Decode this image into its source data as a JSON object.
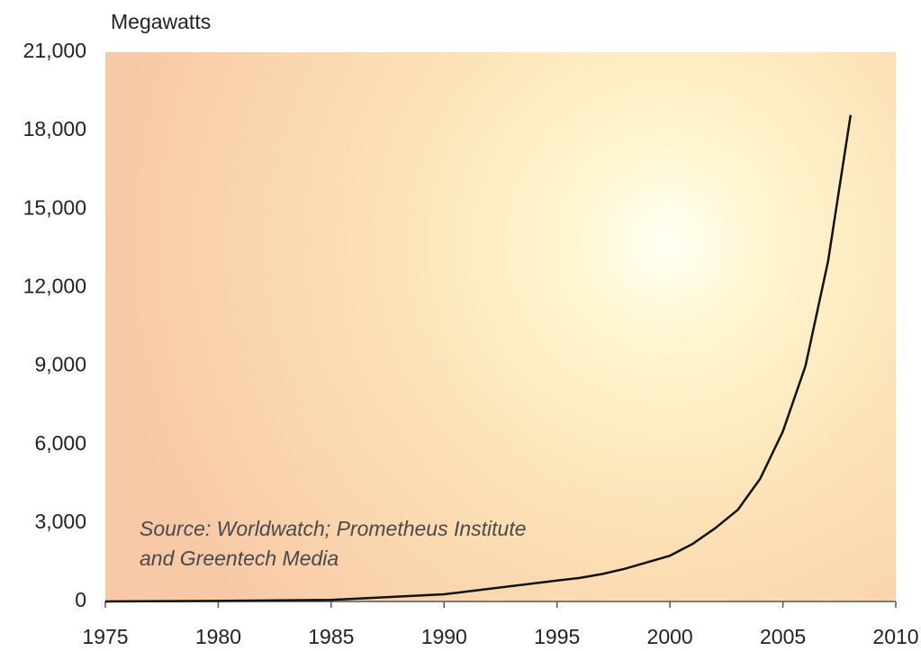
{
  "chart_data": {
    "type": "line",
    "y_axis_label": "Megawatts",
    "annotation": [
      "Source: Worldwatch; Prometheus Institute",
      "and Greentech Media"
    ],
    "x": [
      1975,
      1980,
      1985,
      1990,
      1995,
      1996,
      1997,
      1998,
      1999,
      2000,
      2001,
      2002,
      2003,
      2004,
      2005,
      2006,
      2007,
      2008
    ],
    "series": [
      {
        "color": "#111111",
        "values": [
          2,
          20,
          60,
          275,
          800,
          900,
          1050,
          1250,
          1500,
          1750,
          2200,
          2800,
          3500,
          4700,
          6500,
          9000,
          13000,
          18600
        ]
      }
    ],
    "xlim": [
      1975,
      2010
    ],
    "xticks": [
      1975,
      1980,
      1985,
      1990,
      1995,
      2000,
      2005,
      2010
    ],
    "ylim": [
      0,
      21000
    ],
    "yticks": [
      0,
      {
        "value": 3000,
        "label": "3,000"
      },
      {
        "value": 6000,
        "label": "6,000"
      },
      {
        "value": 9000,
        "label": "9,000"
      },
      {
        "value": 12000,
        "label": "12,000"
      },
      {
        "value": 15000,
        "label": "15,000"
      },
      {
        "value": 18000,
        "label": "18,000"
      },
      {
        "value": 21000,
        "label": "21,000"
      }
    ],
    "grid": false
  }
}
